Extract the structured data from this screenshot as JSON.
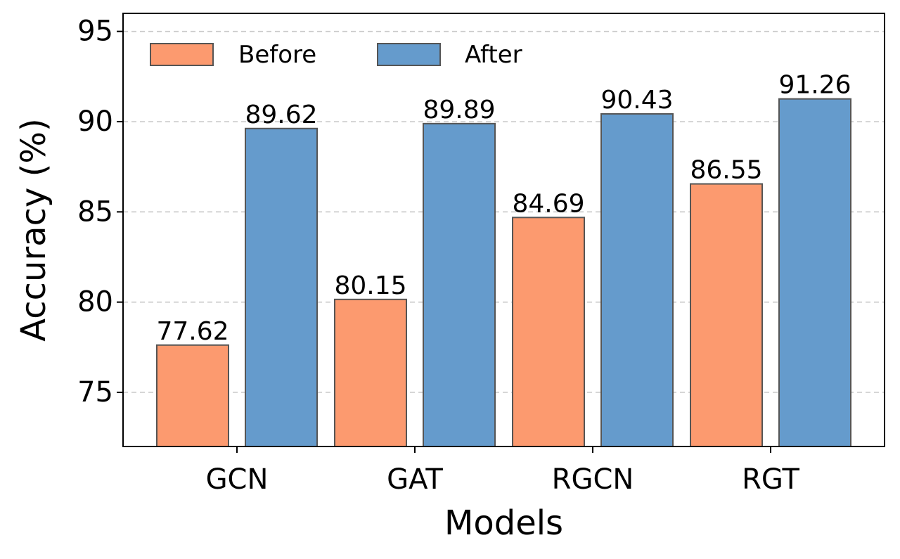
{
  "chart_data": {
    "type": "bar",
    "categories": [
      "GCN",
      "GAT",
      "RGCN",
      "RGT"
    ],
    "series": [
      {
        "name": "Before",
        "values": [
          77.62,
          80.15,
          84.69,
          86.55
        ],
        "color": "#fc9a6f"
      },
      {
        "name": "After",
        "values": [
          89.62,
          89.89,
          90.43,
          91.26
        ],
        "color": "#659bcc"
      }
    ],
    "value_labels": [
      [
        "77.62",
        "80.15",
        "84.69",
        "86.55"
      ],
      [
        "89.62",
        "89.89",
        "90.43",
        "91.26"
      ]
    ],
    "xlabel": "Models",
    "ylabel": "Accuracy (%)",
    "ylim": [
      72.0,
      96.0
    ],
    "yticks": [
      "75",
      "80",
      "85",
      "90",
      "95"
    ],
    "grid": "horizontal dashed",
    "legend_position": "top-left",
    "edge_color": "#555555"
  }
}
